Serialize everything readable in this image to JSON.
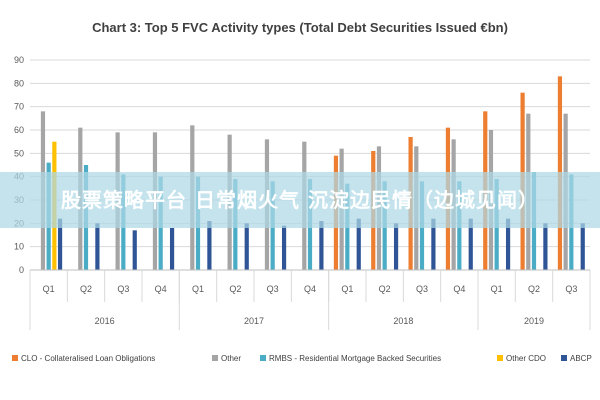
{
  "chart_data": {
    "type": "bar",
    "title": "Chart 3: Top 5 FVC Activity types (Total Debt Securities Issued €bn)",
    "ylim": [
      0,
      90
    ],
    "yticks": [
      0,
      10,
      20,
      30,
      40,
      50,
      60,
      70,
      80,
      90
    ],
    "categories": [
      "Q1",
      "Q2",
      "Q3",
      "Q4",
      "Q1",
      "Q2",
      "Q3",
      "Q4",
      "Q1",
      "Q2",
      "Q3",
      "Q4",
      "Q1",
      "Q2",
      "Q3"
    ],
    "groups": [
      {
        "label": "2016",
        "count": 4
      },
      {
        "label": "2017",
        "count": 4
      },
      {
        "label": "2018",
        "count": 4
      },
      {
        "label": "2019",
        "count": 3
      }
    ],
    "series": [
      {
        "name": "CLO - Collateralised Loan Obligations",
        "color": "#ED7D31",
        "values": [
          null,
          null,
          null,
          null,
          null,
          null,
          null,
          null,
          49,
          51,
          57,
          61,
          68,
          76,
          83
        ]
      },
      {
        "name": "Other",
        "color": "#A5A5A5",
        "values": [
          68,
          61,
          59,
          59,
          62,
          58,
          56,
          55,
          52,
          53,
          53,
          56,
          60,
          67,
          67
        ]
      },
      {
        "name": "RMBS - Residential Mortgage Backed Securities",
        "color": "#4BACC6",
        "values": [
          46,
          45,
          41,
          40,
          40,
          39,
          38,
          39,
          37,
          38,
          38,
          38,
          39,
          42,
          41
        ]
      },
      {
        "name": "Other CDO",
        "color": "#FFC000",
        "values": [
          55,
          null,
          null,
          null,
          null,
          null,
          null,
          null,
          null,
          null,
          null,
          null,
          null,
          null,
          null
        ]
      },
      {
        "name": "ABCP",
        "color": "#2F5597",
        "values": [
          22,
          20,
          17,
          18,
          21,
          20,
          19,
          21,
          22,
          20,
          22,
          22,
          22,
          20,
          20
        ]
      }
    ]
  },
  "overlay": {
    "text": "股票策略平台 日常烟火气  沉淀边民情（边城见闻）"
  }
}
